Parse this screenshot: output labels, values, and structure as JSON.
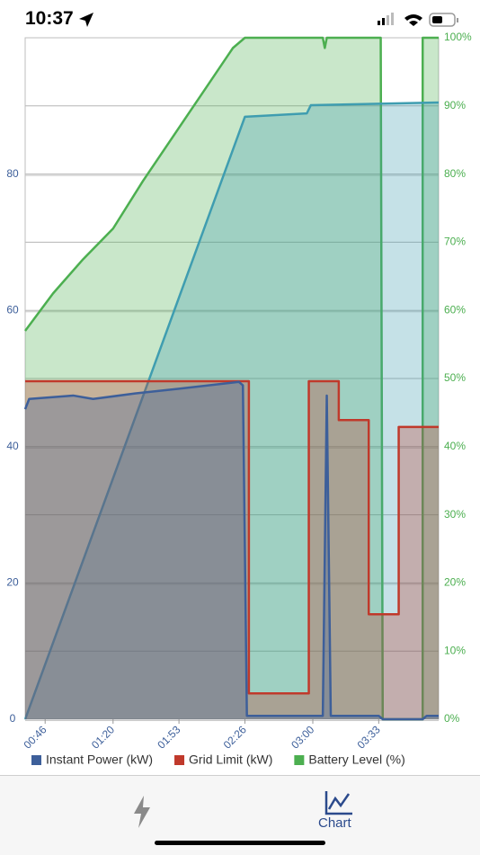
{
  "status_bar": {
    "time": "10:37"
  },
  "tab_bar": {
    "chart_label": "Chart"
  },
  "chart_data": {
    "type": "area",
    "xlim": [
      "00:36",
      "04:03"
    ],
    "xticks": [
      "00:46",
      "01:20",
      "01:53",
      "02:26",
      "03:00",
      "03:33"
    ],
    "ylim": [
      0,
      100
    ],
    "yticks": [
      0,
      20,
      40,
      60,
      80
    ],
    "y2lim": [
      0,
      100
    ],
    "y2ticks": [
      {
        "value": 0,
        "label": "0%"
      },
      {
        "value": 10,
        "label": "10%"
      },
      {
        "value": 20,
        "label": "20%"
      },
      {
        "value": 30,
        "label": "30%"
      },
      {
        "value": 40,
        "label": "40%"
      },
      {
        "value": 50,
        "label": "50%"
      },
      {
        "value": 60,
        "label": "60%"
      },
      {
        "value": 70,
        "label": "70%"
      },
      {
        "value": 80,
        "label": "80%"
      },
      {
        "value": 90,
        "label": "90%"
      },
      {
        "value": 100,
        "label": "100%"
      }
    ],
    "grid": true,
    "legend": "bottom",
    "series": [
      {
        "name": "Battery Level (%)",
        "color": "#4caf50",
        "axis": "y2",
        "x": [
          "00:36",
          "00:50",
          "01:05",
          "01:20",
          "01:35",
          "01:50",
          "02:05",
          "02:20",
          "02:26",
          "03:05",
          "03:06",
          "03:07",
          "03:34",
          "03:35",
          "03:55",
          "03:55",
          "04:03"
        ],
        "values": [
          57,
          62.5,
          67.5,
          72,
          79,
          85.5,
          92,
          98.5,
          100,
          100,
          98.5,
          100,
          100,
          0,
          0,
          100,
          100
        ]
      },
      {
        "color": "#3f9db0",
        "x": [
          "00:36",
          "02:26",
          "02:57",
          "02:59",
          "04:03"
        ],
        "values": [
          0,
          88.4,
          88.9,
          90.1,
          90.5
        ]
      },
      {
        "name": "Grid Limit (kW)",
        "color": "#c0392b",
        "x": [
          "00:36",
          "02:28",
          "02:28",
          "02:58",
          "02:58",
          "03:13",
          "03:13",
          "03:28",
          "03:28",
          "03:43",
          "03:43",
          "04:03"
        ],
        "values": [
          49.6,
          49.6,
          3.8,
          3.8,
          49.6,
          49.6,
          43.9,
          43.9,
          15.4,
          15.4,
          42.9,
          42.9
        ]
      },
      {
        "name": "Instant Power (kW)",
        "color": "#3d5f9a",
        "x": [
          "00:36",
          "00:38",
          "01:00",
          "01:10",
          "01:31",
          "01:53",
          "02:23",
          "02:25",
          "02:27",
          "03:05",
          "03:07",
          "03:09",
          "03:33",
          "03:35",
          "03:55",
          "03:57",
          "04:03"
        ],
        "values": [
          45.5,
          47,
          47.5,
          47,
          47.8,
          48.5,
          49.5,
          49,
          0.5,
          0.5,
          47.5,
          0.5,
          0.5,
          0,
          0,
          0.5,
          0.5
        ]
      }
    ]
  }
}
